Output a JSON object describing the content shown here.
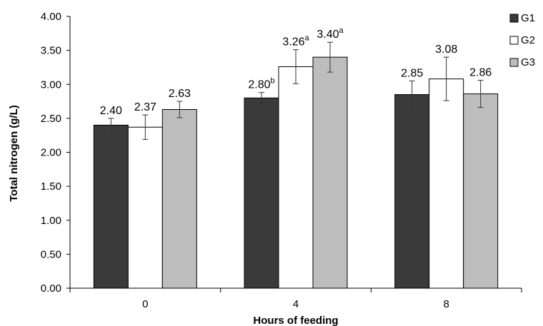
{
  "chart_data": {
    "type": "bar",
    "title": "",
    "xlabel": "Hours of feeding",
    "ylabel": "Total nitrogen (g/L)",
    "ylim": [
      0,
      4
    ],
    "yticks": [
      "0.00",
      "0.50",
      "1.00",
      "1.50",
      "2.00",
      "2.50",
      "3.00",
      "3.50",
      "4.00"
    ],
    "categories": [
      "0",
      "4",
      "8"
    ],
    "series": [
      {
        "name": "G1",
        "color": "#3a3a3a",
        "values": [
          2.4,
          2.8,
          2.85
        ],
        "errors": [
          0.1,
          0.08,
          0.2
        ],
        "labels": [
          "2.40",
          "2.80",
          "2.85"
        ],
        "sup": [
          "",
          "b",
          ""
        ]
      },
      {
        "name": "G2",
        "color": "#ffffff",
        "values": [
          2.37,
          3.26,
          3.08
        ],
        "errors": [
          0.18,
          0.25,
          0.32
        ],
        "labels": [
          "2.37",
          "3.26",
          "3.08"
        ],
        "sup": [
          "",
          "a",
          ""
        ]
      },
      {
        "name": "G3",
        "color": "#bdbdbd",
        "values": [
          2.63,
          3.4,
          2.86
        ],
        "errors": [
          0.12,
          0.22,
          0.2
        ],
        "labels": [
          "2.63",
          "3.40",
          "2.86"
        ],
        "sup": [
          "",
          "a",
          ""
        ]
      }
    ],
    "legend": "top-right",
    "grid": false
  }
}
